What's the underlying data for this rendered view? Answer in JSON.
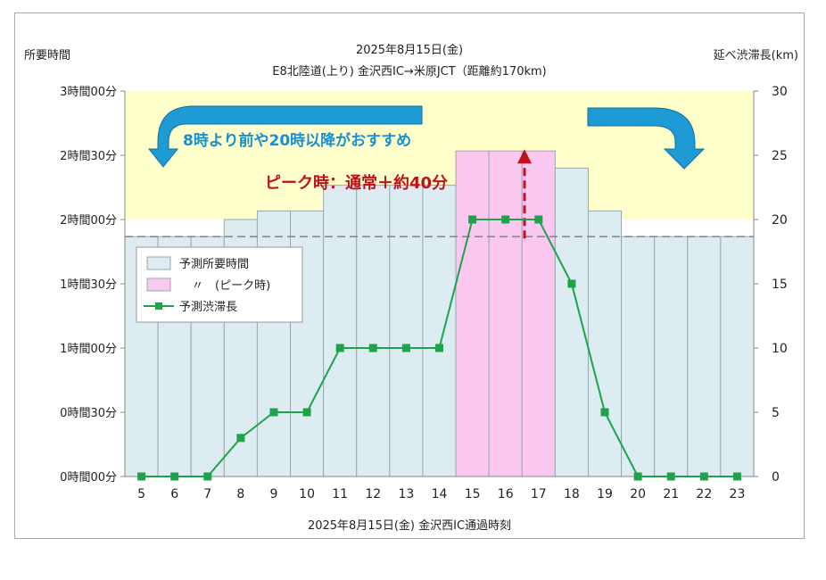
{
  "chart_data": {
    "type": "bar",
    "title": "2025年8月15日(金)",
    "subtitle": "E8北陸道(上り) 金沢西IC→米原JCT（距離約170km)",
    "ylabel_left": "所要時間",
    "ylabel_right": "延べ渋滞長(km)",
    "xlabel": "2025年8月15日(金) 金沢西IC通過時刻",
    "categories": [
      "5",
      "6",
      "7",
      "8",
      "9",
      "10",
      "11",
      "12",
      "13",
      "14",
      "15",
      "16",
      "17",
      "18",
      "19",
      "20",
      "21",
      "22",
      "23"
    ],
    "left_axis": {
      "unit": "minutes",
      "range": [
        0,
        180
      ],
      "ticks": [
        0,
        30,
        60,
        90,
        120,
        150,
        180
      ],
      "tick_labels": [
        "0時間00分",
        "0時間30分",
        "1時間00分",
        "1時間30分",
        "2時間00分",
        "2時間30分",
        "3時間00分"
      ]
    },
    "right_axis": {
      "unit": "km",
      "range": [
        0,
        30
      ],
      "ticks": [
        0,
        5,
        10,
        15,
        20,
        25,
        30
      ],
      "tick_labels": [
        "0",
        "5",
        "10",
        "15",
        "20",
        "25",
        "30"
      ]
    },
    "series": [
      {
        "name": "予測所要時間",
        "type": "bar",
        "axis": "left",
        "color": "#dcecf1",
        "values": [
          112,
          112,
          112,
          120,
          124,
          124,
          136,
          136,
          136,
          136,
          152,
          152,
          152,
          144,
          124,
          112,
          112,
          112,
          112
        ]
      },
      {
        "name": "〃　(ピーク時)",
        "type": "bar",
        "axis": "left",
        "color": "#fbc8f2",
        "values": [
          null,
          null,
          null,
          null,
          null,
          null,
          null,
          null,
          null,
          null,
          152,
          152,
          152,
          null,
          null,
          null,
          null,
          null,
          null
        ]
      },
      {
        "name": "予測渋滞長",
        "type": "line",
        "axis": "right",
        "color": "#1ea34a",
        "values": [
          0,
          0,
          0,
          3,
          5,
          5,
          10,
          10,
          10,
          10,
          20,
          20,
          20,
          15,
          5,
          0,
          0,
          0,
          0
        ]
      }
    ],
    "reference_line": {
      "axis": "left",
      "value": 112,
      "style": "dashed",
      "color": "#8a8a8a"
    },
    "recommended_band": {
      "axis": "left",
      "from": 120,
      "to": 180,
      "color": "#ffffcc"
    },
    "annotations": {
      "recommend": "8時より前や20時以降がおすすめ",
      "recommend_color": "#1a8fd0",
      "peak": "ピーク時：通常＋約40分",
      "peak_color": "#c0101e",
      "arrow_color": "#1e9bd4"
    },
    "legend_position": "left-middle",
    "grid": false
  }
}
